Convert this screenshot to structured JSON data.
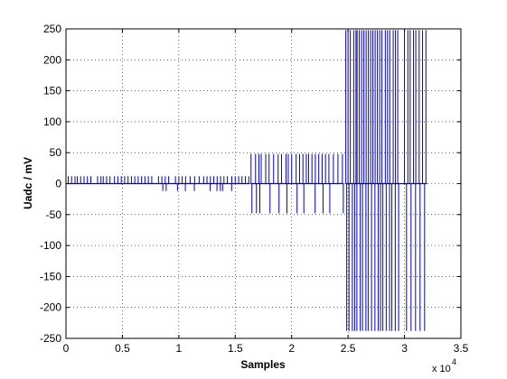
{
  "chart_data": {
    "type": "line",
    "title": "",
    "xlabel": "Samples",
    "ylabel": "Uadc / mV",
    "x_exponent_label": "x 10",
    "x_exponent_power": "4",
    "xlim": [
      0,
      3.5
    ],
    "ylim": [
      -250,
      250
    ],
    "x_scale_factor": 10000,
    "grid": true,
    "grid_style": "dotted",
    "line_color": "#0000cc",
    "xticks": [
      0,
      0.5,
      1,
      1.5,
      2,
      2.5,
      3,
      3.5
    ],
    "xtick_labels": [
      "0",
      "0.5",
      "1",
      "1.5",
      "2",
      "2.5",
      "3",
      "3.5"
    ],
    "yticks": [
      250,
      200,
      150,
      100,
      50,
      0,
      -50,
      -100,
      -150,
      -200,
      -250
    ],
    "ytick_labels": [
      "250",
      "200",
      "150",
      "100",
      "50",
      "0",
      "-50",
      "-100",
      "-150",
      "-200",
      "-250"
    ],
    "series": [
      {
        "baseline": 0,
        "segments": [
          {
            "x_start": 0.0,
            "x_end": 1.63,
            "up": 12,
            "down": -12,
            "spikes": [
              0.02,
              0.05,
              0.08,
              0.1,
              0.13,
              0.16,
              0.19,
              0.22,
              0.28,
              0.31,
              0.33,
              0.36,
              0.39,
              0.43,
              0.46,
              0.49,
              0.52,
              0.55,
              0.58,
              0.61,
              0.64,
              0.67,
              0.7,
              0.73,
              0.76,
              0.82,
              0.85,
              0.88,
              0.91,
              0.97,
              1.0,
              1.03,
              1.06,
              1.1,
              1.14,
              1.18,
              1.22,
              1.25,
              1.28,
              1.31,
              1.34,
              1.37,
              1.4,
              1.43,
              1.47,
              1.5,
              1.53,
              1.56,
              1.59,
              1.62
            ],
            "down_spikes": [
              0.85,
              0.88,
              0.98,
              1.05,
              1.13,
              1.27,
              1.33,
              1.36,
              1.38,
              1.46
            ]
          },
          {
            "x_start": 1.64,
            "x_end": 2.46,
            "up": 48,
            "down": -48,
            "spikes": [
              1.64,
              1.68,
              1.71,
              1.73,
              1.77,
              1.8,
              1.84,
              1.88,
              1.91,
              1.95,
              1.97,
              2.0,
              2.04,
              2.07,
              2.1,
              2.13,
              2.15,
              2.18,
              2.21,
              2.24,
              2.27,
              2.3,
              2.33,
              2.37,
              2.41,
              2.45
            ],
            "down_spikes": [
              1.64,
              1.68,
              1.71,
              1.8,
              1.88,
              1.95,
              2.04,
              2.1,
              2.2,
              2.27,
              2.33,
              2.45
            ]
          },
          {
            "x_start": 2.48,
            "x_end": 3.2,
            "up": 248,
            "down": -238,
            "spikes": [
              2.48,
              2.5,
              2.52,
              2.55,
              2.57,
              2.58,
              2.6,
              2.62,
              2.64,
              2.66,
              2.68,
              2.7,
              2.72,
              2.74,
              2.76,
              2.78,
              2.8,
              2.83,
              2.85,
              2.87,
              2.9,
              2.92,
              2.94,
              3.0,
              3.03,
              3.05,
              3.08,
              3.1,
              3.13,
              3.16,
              3.19
            ],
            "down_spikes": [
              2.48,
              2.5,
              2.53,
              2.55,
              2.57,
              2.6,
              2.62,
              2.65,
              2.67,
              2.7,
              2.73,
              2.76,
              2.78,
              2.8,
              2.83,
              2.86,
              2.88,
              2.91,
              2.94,
              3.01,
              3.05,
              3.09,
              3.13,
              3.17
            ]
          }
        ]
      }
    ]
  }
}
